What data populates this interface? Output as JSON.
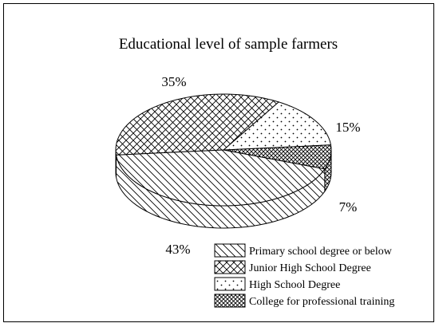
{
  "chart_data": {
    "type": "pie",
    "title": "Educational level of sample farmers",
    "categories": [
      "Primary school degree or below",
      "Junior High School Degree",
      "High School Degree",
      "College for professional training"
    ],
    "values": [
      43,
      35,
      15,
      7
    ],
    "data_labels": [
      "43%",
      "35%",
      "15%",
      "7%"
    ],
    "patterns": [
      "diagonal-lines",
      "crosshatch",
      "dots",
      "fine-crosshatch"
    ],
    "legend_placement": "bottom-right",
    "three_d": true
  }
}
